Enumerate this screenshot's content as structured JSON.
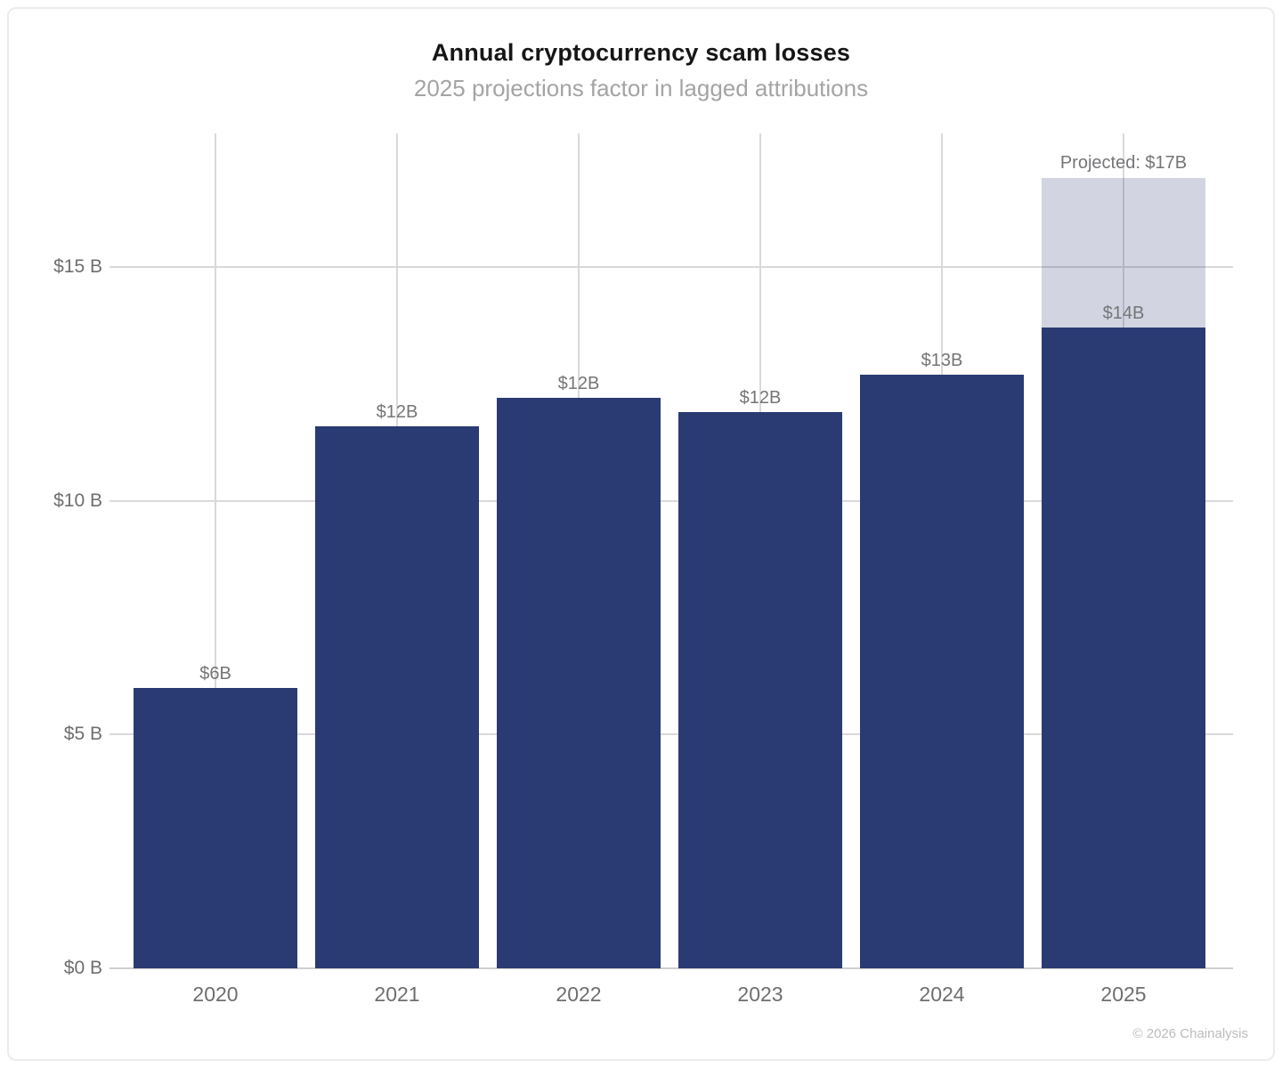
{
  "card": {
    "title": "Annual cryptocurrency scam losses",
    "subtitle": "2025 projections factor in lagged attributions",
    "footer": "© 2026 Chainalysis"
  },
  "colors": {
    "bar": "#2a3a72",
    "projected_overlay": "rgba(42,58,114,0.21)",
    "projected_apparent": "#d3d5e2",
    "grid": "#d9d9d9",
    "axis_line": "#cfcfcf",
    "tick_text": "#6e6e6e",
    "bar_label_text": "#757578",
    "title_text": "#161616",
    "subtitle_text": "#a4a4a4",
    "footer_text": "#bcbcbc"
  },
  "chart_data": {
    "type": "bar",
    "title": "Annual cryptocurrency scam losses",
    "subtitle": "2025 projections factor in lagged attributions",
    "categories": [
      "2020",
      "2021",
      "2022",
      "2023",
      "2024",
      "2025"
    ],
    "values": [
      6.0,
      11.6,
      12.2,
      11.9,
      12.7,
      13.7
    ],
    "bar_labels": [
      "$6B",
      "$12B",
      "$12B",
      "$12B",
      "$13B",
      "$14B"
    ],
    "projected": {
      "category": "2025",
      "base_value": 13.7,
      "total_value": 16.9,
      "label": "Projected: $17B"
    },
    "yticks": [
      {
        "value": 0,
        "label": "$0 B"
      },
      {
        "value": 5,
        "label": "$5 B"
      },
      {
        "value": 10,
        "label": "$10 B"
      },
      {
        "value": 15,
        "label": "$15 B"
      }
    ],
    "ylim": [
      0,
      17.9
    ],
    "xlabel": "",
    "ylabel": "",
    "unit": "billions USD",
    "grid": true,
    "legend": false
  }
}
